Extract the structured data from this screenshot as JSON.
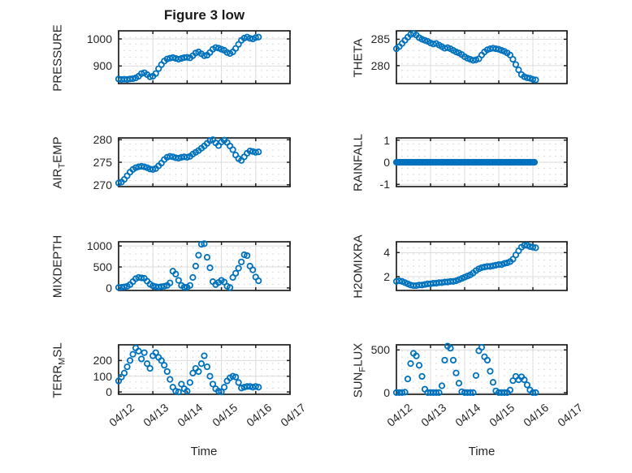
{
  "title": "Figure 3 low",
  "xlabel": "Time",
  "colors": {
    "marker": "#0072bd",
    "axis_text": "#262626",
    "box": "#1f1f1f",
    "grid_major": "#dcdcdc",
    "grid_minor_dot": "#c9c9c9"
  },
  "axes_shared": {
    "x_tick_labels": [
      "04/12",
      "04/13",
      "04/14",
      "04/15",
      "04/16",
      "04/17"
    ],
    "x_range_days": [
      0,
      5
    ],
    "grid": "major solid + minor dotted",
    "marker_style": "open circle"
  },
  "chart_data": [
    {
      "id": "pressure",
      "type": "scatter",
      "col": 0,
      "row": 0,
      "ylabel_parts": [
        {
          "text": "PRESSURE",
          "sub": false
        }
      ],
      "yticks": [
        900,
        1000
      ],
      "ylim": [
        835,
        1030
      ],
      "t_start_day": 0,
      "dt_days": 0.0833,
      "values": [
        852,
        850,
        851,
        850,
        852,
        853,
        856,
        862,
        872,
        875,
        868,
        860,
        862,
        872,
        890,
        905,
        918,
        926,
        929,
        931,
        928,
        925,
        928,
        931,
        932,
        930,
        938,
        948,
        952,
        945,
        938,
        940,
        950,
        962,
        968,
        966,
        962,
        958,
        950,
        946,
        952,
        965,
        980,
        995,
        1003,
        1007,
        1002,
        1000,
        1005,
        1007
      ]
    },
    {
      "id": "theta",
      "type": "scatter",
      "col": 1,
      "row": 0,
      "ylabel_parts": [
        {
          "text": "THETA",
          "sub": false
        }
      ],
      "yticks": [
        280,
        285
      ],
      "ylim": [
        276.6,
        286.6
      ],
      "t_start_day": 0,
      "dt_days": 0.0833,
      "values": [
        283.2,
        283.6,
        284.2,
        284.8,
        285.4,
        285.9,
        286.1,
        285.8,
        285.3,
        285.0,
        284.8,
        284.6,
        284.3,
        284.1,
        284.2,
        283.9,
        283.6,
        283.3,
        283.4,
        283.2,
        282.9,
        282.6,
        282.4,
        282.1,
        281.7,
        281.4,
        281.2,
        281.0,
        281.1,
        281.3,
        282.0,
        282.6,
        283.0,
        283.2,
        283.3,
        283.2,
        283.1,
        282.9,
        282.7,
        282.4,
        282.0,
        281.2,
        280.2,
        279.2,
        278.3,
        277.9,
        277.7,
        277.6,
        277.4,
        277.3
      ]
    },
    {
      "id": "airtemp",
      "type": "scatter",
      "col": 0,
      "row": 1,
      "ylabel_parts": [
        {
          "text": "AIR",
          "sub": false
        },
        {
          "text": "T",
          "sub": true
        },
        {
          "text": "EMP",
          "sub": false
        }
      ],
      "yticks": [
        270,
        275,
        280
      ],
      "ylim": [
        269.6,
        280.4
      ],
      "t_start_day": 0,
      "dt_days": 0.0833,
      "values": [
        270.4,
        270.6,
        271.2,
        272.0,
        272.8,
        273.4,
        273.8,
        274.0,
        274.1,
        274.0,
        273.8,
        273.5,
        273.4,
        273.6,
        274.2,
        274.8,
        275.6,
        276.1,
        276.3,
        276.2,
        276.0,
        275.9,
        276.1,
        276.2,
        276.1,
        276.3,
        276.8,
        277.2,
        277.6,
        278.1,
        278.6,
        279.2,
        279.8,
        280.0,
        279.3,
        278.7,
        279.5,
        279.9,
        279.4,
        278.6,
        277.8,
        276.6,
        275.8,
        275.4,
        276.2,
        277.0,
        277.5,
        277.4,
        277.2,
        277.3
      ]
    },
    {
      "id": "rainfall",
      "type": "scatter",
      "col": 1,
      "row": 1,
      "ylabel_parts": [
        {
          "text": "RAINFALL",
          "sub": false
        }
      ],
      "yticks": [
        -1,
        0,
        1
      ],
      "ylim": [
        -1.1,
        1.1
      ],
      "t_start_day": 0,
      "dt_days": 0.034,
      "constant": 0,
      "n": 120
    },
    {
      "id": "mixdepth",
      "type": "scatter",
      "col": 0,
      "row": 2,
      "ylabel_parts": [
        {
          "text": "MIXDEPTH",
          "sub": false
        }
      ],
      "yticks": [
        0,
        500,
        1000
      ],
      "ylim": [
        -60,
        1100
      ],
      "t_start_day": 0,
      "dt_days": 0.0833,
      "values": [
        10,
        15,
        25,
        40,
        80,
        150,
        220,
        250,
        240,
        230,
        160,
        90,
        50,
        30,
        20,
        30,
        40,
        60,
        120,
        400,
        330,
        180,
        60,
        20,
        15,
        60,
        250,
        520,
        780,
        1040,
        1055,
        730,
        480,
        150,
        80,
        130,
        180,
        140,
        40,
        10,
        250,
        350,
        470,
        620,
        790,
        770,
        520,
        430,
        260,
        170
      ]
    },
    {
      "id": "h2omixra",
      "type": "scatter",
      "col": 1,
      "row": 2,
      "ylabel_parts": [
        {
          "text": "H2OMIXRA",
          "sub": false
        }
      ],
      "yticks": [
        2,
        4
      ],
      "ylim": [
        0.85,
        4.9
      ],
      "t_start_day": 0,
      "dt_days": 0.0833,
      "values": [
        1.6,
        1.65,
        1.6,
        1.5,
        1.4,
        1.3,
        1.25,
        1.25,
        1.3,
        1.3,
        1.35,
        1.4,
        1.4,
        1.45,
        1.45,
        1.5,
        1.5,
        1.55,
        1.55,
        1.6,
        1.6,
        1.65,
        1.75,
        1.85,
        1.95,
        2.05,
        2.15,
        2.3,
        2.5,
        2.65,
        2.75,
        2.8,
        2.85,
        2.85,
        2.9,
        2.95,
        3.0,
        3.0,
        3.1,
        3.15,
        3.25,
        3.45,
        3.8,
        4.15,
        4.45,
        4.6,
        4.6,
        4.5,
        4.45,
        4.4
      ]
    },
    {
      "id": "terrmsl",
      "type": "scatter",
      "col": 0,
      "row": 3,
      "ylabel_parts": [
        {
          "text": "TERR",
          "sub": false
        },
        {
          "text": "M",
          "sub": true
        },
        {
          "text": "SL",
          "sub": false
        }
      ],
      "yticks": [
        0,
        100,
        200
      ],
      "ylim": [
        -15,
        300
      ],
      "t_start_day": 0,
      "dt_days": 0.0833,
      "values": [
        70,
        95,
        120,
        160,
        200,
        240,
        280,
        260,
        210,
        250,
        180,
        150,
        230,
        250,
        220,
        200,
        170,
        130,
        80,
        30,
        5,
        0,
        50,
        20,
        5,
        60,
        120,
        150,
        130,
        180,
        230,
        160,
        100,
        50,
        20,
        5,
        0,
        30,
        70,
        90,
        100,
        95,
        60,
        25,
        30,
        35,
        35,
        30,
        35,
        30
      ]
    },
    {
      "id": "sunflux",
      "type": "scatter",
      "col": 1,
      "row": 3,
      "ylabel_parts": [
        {
          "text": "SUN",
          "sub": false
        },
        {
          "text": "F",
          "sub": true
        },
        {
          "text": "LUX",
          "sub": false
        }
      ],
      "yticks": [
        0,
        500
      ],
      "ylim": [
        -20,
        560
      ],
      "t_start_day": 0,
      "dt_days": 0.0833,
      "values": [
        0,
        0,
        0,
        5,
        160,
        340,
        460,
        430,
        320,
        190,
        40,
        0,
        0,
        0,
        0,
        0,
        80,
        380,
        545,
        520,
        380,
        230,
        110,
        10,
        0,
        0,
        0,
        0,
        200,
        490,
        530,
        420,
        380,
        250,
        120,
        20,
        0,
        0,
        0,
        0,
        30,
        140,
        190,
        150,
        185,
        150,
        90,
        30,
        0,
        0
      ]
    }
  ]
}
